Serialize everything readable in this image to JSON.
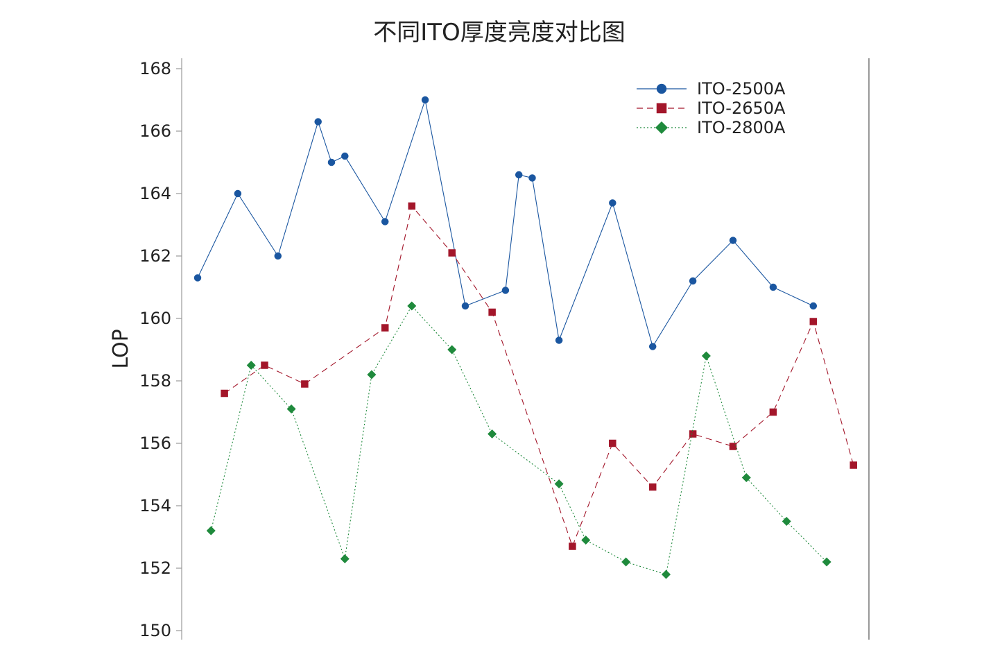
{
  "chart_data": {
    "type": "line",
    "title": "不同ITO厚度亮度对比图",
    "ylabel": "LOP",
    "xlabel": "",
    "ylim": [
      150,
      168
    ],
    "yticks": [
      "150",
      "152",
      "154",
      "156",
      "158",
      "160",
      "162",
      "164",
      "166",
      "168"
    ],
    "grid": false,
    "legend_position": "top-right",
    "series": [
      {
        "name": "ITO-2500A",
        "color": "#1a56a0",
        "marker": "circle",
        "line": "solid",
        "x": [
          1,
          4,
          7,
          10,
          11,
          12,
          15,
          18,
          21,
          24,
          25,
          26,
          28,
          32,
          35,
          38,
          41,
          44,
          47
        ],
        "values": [
          161.3,
          164.0,
          162.0,
          166.3,
          165.0,
          165.2,
          163.1,
          167.0,
          160.4,
          160.9,
          164.6,
          164.5,
          159.3,
          163.7,
          159.1,
          161.2,
          162.5,
          161.0,
          160.4
        ]
      },
      {
        "name": "ITO-2650A",
        "color": "#a3162a",
        "marker": "square",
        "line": "dashed",
        "x": [
          3,
          6,
          9,
          15,
          17,
          20,
          23,
          29,
          32,
          35,
          38,
          41,
          44,
          47,
          50
        ],
        "values": [
          157.6,
          158.5,
          157.9,
          159.7,
          163.6,
          162.1,
          160.2,
          152.7,
          156.0,
          154.6,
          156.3,
          155.9,
          157.0,
          159.9,
          155.3
        ]
      },
      {
        "name": "ITO-2800A",
        "color": "#1f8a3c",
        "marker": "diamond",
        "line": "dotted",
        "x": [
          2,
          5,
          8,
          12,
          14,
          17,
          20,
          23,
          28,
          30,
          33,
          36,
          39,
          42,
          45,
          48
        ],
        "values": [
          153.2,
          158.5,
          157.1,
          152.3,
          158.2,
          160.4,
          159.0,
          156.3,
          154.7,
          152.9,
          152.2,
          151.8,
          158.8,
          154.9,
          153.5,
          152.2
        ]
      }
    ]
  }
}
